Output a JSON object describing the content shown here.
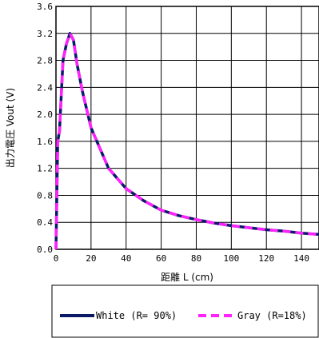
{
  "chart_data": {
    "type": "line",
    "xlabel": "距離 L (cm)",
    "ylabel": "出力電圧 Vout (V)",
    "xlim": [
      0,
      150
    ],
    "ylim": [
      0,
      3.6
    ],
    "xticks": [
      0,
      20,
      40,
      60,
      80,
      100,
      120,
      140
    ],
    "yticks": [
      0.0,
      0.4,
      0.8,
      1.2,
      1.6,
      2.0,
      2.4,
      2.8,
      3.2,
      3.6
    ],
    "ytick_labels": [
      "0.0",
      "0.4",
      "0.8",
      "1.2",
      "1.6",
      "2.0",
      "2.4",
      "2.8",
      "3.2",
      "3.6"
    ],
    "grid": true,
    "legend_position": "bottom",
    "series": [
      {
        "name": "White (R= 90%)",
        "color": "#0a1a66",
        "style": "solid",
        "x": [
          0,
          1,
          2,
          4,
          6,
          8,
          10,
          12,
          15,
          20,
          25,
          30,
          40,
          50,
          60,
          70,
          80,
          90,
          100,
          110,
          120,
          130,
          140,
          150
        ],
        "y": [
          0.0,
          1.6,
          1.75,
          2.8,
          3.05,
          3.2,
          3.1,
          2.75,
          2.35,
          1.8,
          1.5,
          1.2,
          0.9,
          0.72,
          0.58,
          0.5,
          0.44,
          0.39,
          0.35,
          0.32,
          0.29,
          0.27,
          0.24,
          0.22
        ]
      },
      {
        "name": "Gray (R=18%)",
        "color": "#ff22ff",
        "style": "dashed",
        "x": [
          0,
          1,
          2,
          4,
          6,
          8,
          10,
          12,
          15,
          20,
          25,
          30,
          40,
          50,
          60,
          70,
          80,
          90,
          100,
          110,
          120,
          130,
          140,
          150
        ],
        "y": [
          0.0,
          1.6,
          1.75,
          2.8,
          3.05,
          3.2,
          3.1,
          2.75,
          2.35,
          1.8,
          1.5,
          1.2,
          0.9,
          0.72,
          0.58,
          0.5,
          0.44,
          0.39,
          0.35,
          0.32,
          0.29,
          0.27,
          0.24,
          0.22
        ]
      }
    ]
  }
}
